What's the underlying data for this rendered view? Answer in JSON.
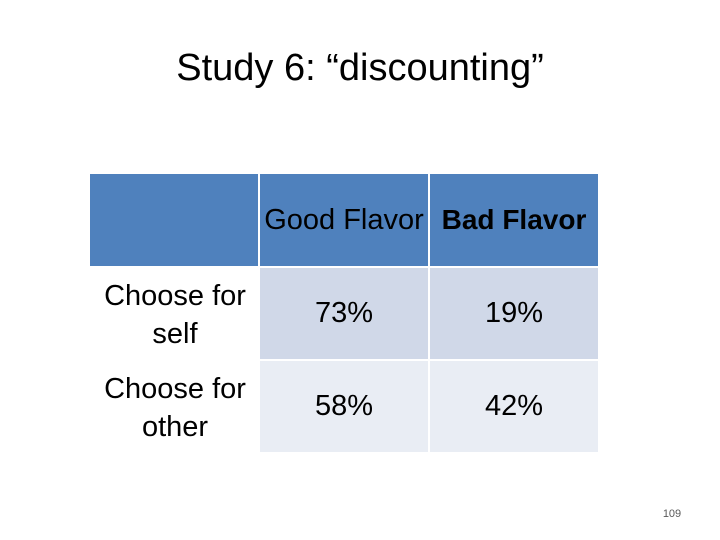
{
  "title": "Study 6: “discounting”",
  "table": {
    "columns": [
      "Good Flavor",
      "Bad Flavor"
    ],
    "rows": [
      {
        "label": "Choose for self",
        "values": [
          "73%",
          "19%"
        ]
      },
      {
        "label": "Choose for other",
        "values": [
          "58%",
          "42%"
        ]
      }
    ]
  },
  "page_number": "109",
  "colors": {
    "header_blue": "#4f81bd",
    "row1_fill": "#d0d8e8",
    "row2_fill": "#e9edf4"
  }
}
